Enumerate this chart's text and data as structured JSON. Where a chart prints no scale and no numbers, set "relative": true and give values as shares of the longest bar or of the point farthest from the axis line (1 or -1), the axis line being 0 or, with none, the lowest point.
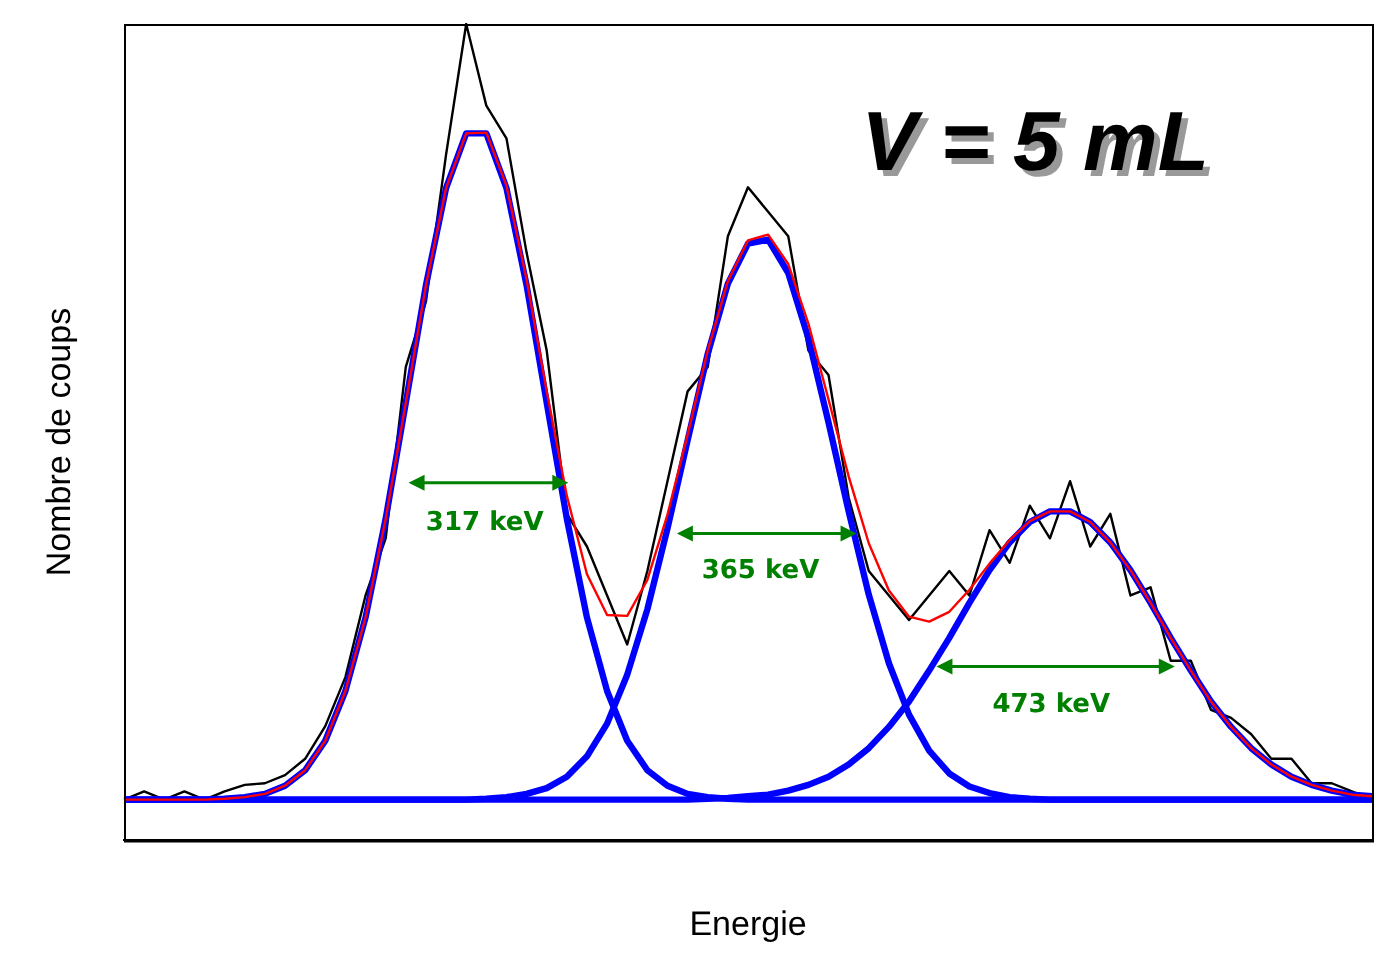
{
  "chart_data": {
    "type": "line",
    "relative": true,
    "xlabel": "Energie",
    "ylabel": "Nombre de coups",
    "legend": false,
    "grid": false,
    "marker": "none",
    "line_style": "solid",
    "annotations": [
      "V = 5 mL",
      "317 keV",
      "365 keV",
      "473 keV"
    ],
    "categories": [
      null,
      null,
      null,
      null,
      null,
      null,
      null,
      null,
      null,
      null,
      null,
      null,
      null,
      null,
      null,
      null,
      null,
      null,
      null,
      null,
      null,
      null,
      null,
      null,
      null,
      null,
      null,
      null,
      null,
      null,
      null,
      null,
      null,
      null,
      null,
      null,
      null,
      null,
      null,
      null,
      null,
      null,
      null,
      null,
      null,
      null,
      null,
      null,
      null,
      null,
      null,
      null,
      null,
      null,
      null,
      null,
      null,
      null,
      null,
      null,
      null,
      null,
      null
    ],
    "series": [
      {
        "color": "#000000",
        "values": [
          0.05,
          0.06,
          0.05,
          0.06,
          0.05,
          0.06,
          0.068,
          0.07,
          0.08,
          0.1,
          0.14,
          0.2,
          0.3,
          0.37,
          0.58,
          0.66,
          0.84,
          1.0,
          0.9,
          0.86,
          0.72,
          0.6,
          0.4,
          0.36,
          0.3,
          0.24,
          0.33,
          0.44,
          0.55,
          0.58,
          0.74,
          0.8,
          0.77,
          0.74,
          0.6,
          0.57,
          0.42,
          0.33,
          0.3,
          0.27,
          0.3,
          0.33,
          0.3,
          0.38,
          0.34,
          0.41,
          0.37,
          0.44,
          0.36,
          0.4,
          0.3,
          0.31,
          0.22,
          0.22,
          0.16,
          0.15,
          0.13,
          0.1,
          0.1,
          0.07,
          0.07,
          0.06,
          0.05
        ]
      },
      {
        "color": "#ff0000",
        "values": [
          0.05,
          0.05,
          0.05,
          0.05,
          0.05,
          0.051,
          0.053,
          0.057,
          0.067,
          0.086,
          0.122,
          0.183,
          0.273,
          0.394,
          0.536,
          0.68,
          0.799,
          0.866,
          0.867,
          0.802,
          0.687,
          0.55,
          0.422,
          0.326,
          0.276,
          0.275,
          0.319,
          0.399,
          0.497,
          0.6,
          0.685,
          0.735,
          0.742,
          0.706,
          0.633,
          0.54,
          0.446,
          0.364,
          0.306,
          0.274,
          0.268,
          0.28,
          0.307,
          0.339,
          0.368,
          0.391,
          0.403,
          0.403,
          0.39,
          0.365,
          0.331,
          0.291,
          0.248,
          0.208,
          0.17,
          0.139,
          0.113,
          0.093,
          0.078,
          0.068,
          0.061,
          0.056,
          0.054
        ]
      },
      {
        "color": "#0000ff",
        "values": [
          0.05,
          0.05,
          0.05,
          0.05,
          0.05,
          0.051,
          0.053,
          0.057,
          0.067,
          0.086,
          0.122,
          0.183,
          0.273,
          0.394,
          0.536,
          0.68,
          0.799,
          0.866,
          0.866,
          0.799,
          0.68,
          0.536,
          0.394,
          0.273,
          0.183,
          0.122,
          0.086,
          0.067,
          0.057,
          0.053,
          0.051,
          0.05,
          0.05,
          0.05,
          0.05,
          0.05,
          0.05,
          0.05,
          0.05,
          0.05,
          0.05,
          0.05,
          0.05,
          0.05,
          0.05,
          0.05,
          0.05,
          0.05,
          0.05,
          0.05,
          0.05,
          0.05,
          0.05,
          0.05,
          0.05,
          0.05,
          0.05,
          0.05,
          0.05,
          0.05,
          0.05,
          0.05,
          0.05
        ]
      },
      {
        "color": "#0000ff",
        "values": [
          0.05,
          0.05,
          0.05,
          0.05,
          0.05,
          0.05,
          0.05,
          0.05,
          0.05,
          0.05,
          0.05,
          0.05,
          0.05,
          0.05,
          0.05,
          0.05,
          0.05,
          0.05,
          0.051,
          0.053,
          0.057,
          0.064,
          0.078,
          0.103,
          0.143,
          0.203,
          0.283,
          0.382,
          0.49,
          0.596,
          0.682,
          0.731,
          0.736,
          0.695,
          0.615,
          0.512,
          0.403,
          0.301,
          0.217,
          0.154,
          0.11,
          0.082,
          0.066,
          0.058,
          0.053,
          0.051,
          0.05,
          0.05,
          0.05,
          0.05,
          0.05,
          0.05,
          0.05,
          0.05,
          0.05,
          0.05,
          0.05,
          0.05,
          0.05,
          0.05,
          0.05,
          0.05,
          0.05
        ]
      },
      {
        "color": "#0000ff",
        "values": [
          0.05,
          0.05,
          0.05,
          0.05,
          0.05,
          0.05,
          0.05,
          0.05,
          0.05,
          0.05,
          0.05,
          0.05,
          0.05,
          0.05,
          0.05,
          0.05,
          0.05,
          0.05,
          0.05,
          0.05,
          0.05,
          0.05,
          0.05,
          0.05,
          0.05,
          0.05,
          0.05,
          0.05,
          0.05,
          0.051,
          0.052,
          0.054,
          0.056,
          0.061,
          0.068,
          0.078,
          0.093,
          0.113,
          0.139,
          0.17,
          0.208,
          0.248,
          0.291,
          0.331,
          0.365,
          0.39,
          0.403,
          0.403,
          0.39,
          0.365,
          0.331,
          0.291,
          0.248,
          0.208,
          0.17,
          0.139,
          0.113,
          0.093,
          0.078,
          0.068,
          0.061,
          0.056,
          0.054
        ]
      }
    ]
  }
}
